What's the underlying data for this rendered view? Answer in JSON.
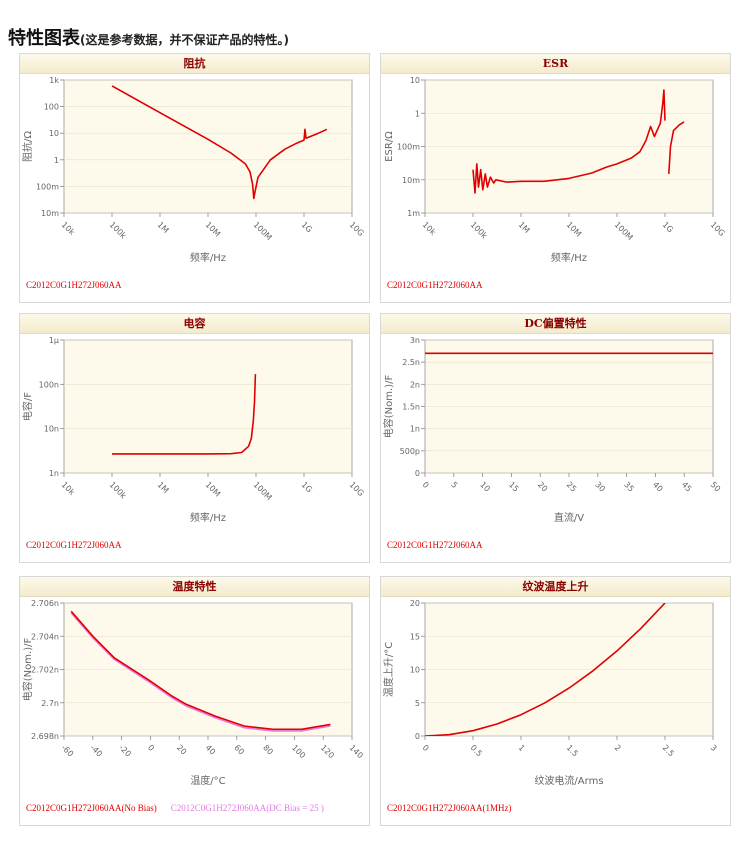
{
  "page": {
    "title": "特性图表",
    "subtitle": "(这是参考数据，并不保证产品的特性。)"
  },
  "colors": {
    "red": "#e00000",
    "pink": "#e47ae4",
    "plot_bg": "#fdfaec",
    "frame": "#a9a9a9"
  },
  "chart_data": [
    {
      "id": "impedance",
      "type": "line",
      "title": "阻抗",
      "xscale": "log",
      "yscale": "log",
      "xlim": [
        10000,
        10000000000
      ],
      "ylim": [
        0.01,
        1000
      ],
      "xticks": [
        10000,
        100000,
        1000000,
        10000000,
        100000000,
        1000000000,
        10000000000
      ],
      "xtick_labels": [
        "10k",
        "100k",
        "1M",
        "10M",
        "100M",
        "1G",
        "10G"
      ],
      "yticks": [
        0.01,
        0.1,
        1,
        10,
        100,
        1000
      ],
      "ytick_labels": [
        "10m",
        "100m",
        "1",
        "10",
        "100",
        "1k"
      ],
      "xlabel": "频率/Hz",
      "ylabel": "阻抗/Ω",
      "series": [
        {
          "color": "#e00000",
          "points": [
            [
              100000,
              600
            ],
            [
              1000000,
              59
            ],
            [
              10000000,
              5.9
            ],
            [
              30000000,
              1.8
            ],
            [
              60000000,
              0.7
            ],
            [
              75000000,
              0.35
            ],
            [
              85000000,
              0.12
            ],
            [
              90000000,
              0.035
            ],
            [
              95000000,
              0.06
            ],
            [
              110000000,
              0.22
            ],
            [
              200000000,
              1.0
            ],
            [
              400000000,
              2.5
            ],
            [
              700000000,
              4.2
            ],
            [
              1000000000,
              5.5
            ],
            [
              1050000000,
              14
            ],
            [
              1100000000,
              6.5
            ],
            [
              2000000000,
              10
            ],
            [
              3000000000,
              14
            ]
          ]
        }
      ],
      "legend": [
        {
          "label": "C2012C0G1H272J060AA",
          "color": "#e00000"
        }
      ]
    },
    {
      "id": "esr",
      "type": "line",
      "title": "ESR",
      "xscale": "log",
      "yscale": "log",
      "xlim": [
        10000,
        10000000000
      ],
      "ylim": [
        0.001,
        10
      ],
      "xticks": [
        10000,
        100000,
        1000000,
        10000000,
        100000000,
        1000000000,
        10000000000
      ],
      "xtick_labels": [
        "10k",
        "100k",
        "1M",
        "10M",
        "100M",
        "1G",
        "10G"
      ],
      "yticks": [
        0.001,
        0.01,
        0.1,
        1,
        10
      ],
      "ytick_labels": [
        "1m",
        "10m",
        "100m",
        "1",
        "10"
      ],
      "xlabel": "频率/Hz",
      "ylabel": "ESR/Ω",
      "series": [
        {
          "color": "#e00000",
          "points": [
            [
              100000,
              0.02
            ],
            [
              110000,
              0.004
            ],
            [
              120000,
              0.03
            ],
            [
              130000,
              0.006
            ],
            [
              145000,
              0.02
            ],
            [
              160000,
              0.005
            ],
            [
              180000,
              0.015
            ],
            [
              200000,
              0.006
            ],
            [
              230000,
              0.012
            ],
            [
              270000,
              0.008
            ],
            [
              300000,
              0.01
            ],
            [
              500000,
              0.0085
            ],
            [
              1000000,
              0.009
            ],
            [
              3000000,
              0.009
            ],
            [
              10000000,
              0.011
            ],
            [
              30000000,
              0.016
            ],
            [
              60000000,
              0.024
            ],
            [
              100000000,
              0.03
            ],
            [
              200000000,
              0.045
            ],
            [
              300000000,
              0.07
            ],
            [
              400000000,
              0.15
            ],
            [
              500000000,
              0.4
            ],
            [
              600000000,
              0.2
            ],
            [
              800000000,
              0.5
            ],
            [
              900000000,
              2
            ],
            [
              950000000,
              5
            ],
            [
              1000000000,
              0.6
            ]
          ]
        },
        {
          "color": "#e00000",
          "points": [
            [
              1200000000,
              0.015
            ],
            [
              1300000000,
              0.1
            ],
            [
              1500000000,
              0.3
            ],
            [
              2000000000,
              0.45
            ],
            [
              2500000000,
              0.55
            ]
          ]
        }
      ],
      "legend": [
        {
          "label": "C2012C0G1H272J060AA",
          "color": "#e00000"
        }
      ]
    },
    {
      "id": "capacitance",
      "type": "line",
      "title": "电容",
      "xscale": "log",
      "yscale": "log",
      "xlim": [
        10000,
        10000000000
      ],
      "ylim": [
        1e-09,
        1e-06
      ],
      "xticks": [
        10000,
        100000,
        1000000,
        10000000,
        100000000,
        1000000000,
        10000000000
      ],
      "xtick_labels": [
        "10k",
        "100k",
        "1M",
        "10M",
        "100M",
        "1G",
        "10G"
      ],
      "yticks": [
        1e-09,
        1e-08,
        1e-07,
        1e-06
      ],
      "ytick_labels": [
        "1n",
        "10n",
        "100n",
        "1μ"
      ],
      "xlabel": "频率/Hz",
      "ylabel": "电容/F",
      "series": [
        {
          "color": "#e00000",
          "points": [
            [
              100000,
              2.7e-09
            ],
            [
              10000000,
              2.7e-09
            ],
            [
              30000000,
              2.72e-09
            ],
            [
              50000000,
              2.9e-09
            ],
            [
              70000000,
              4e-09
            ],
            [
              80000000,
              6e-09
            ],
            [
              88000000,
              1.5e-08
            ],
            [
              93000000,
              4e-08
            ],
            [
              97000000,
              1.7e-07
            ]
          ]
        }
      ],
      "legend": [
        {
          "label": "C2012C0G1H272J060AA",
          "color": "#e00000"
        }
      ]
    },
    {
      "id": "dc-bias",
      "type": "line",
      "title": "DC偏置特性",
      "xscale": "linear",
      "yscale": "linear",
      "xlim": [
        0,
        50
      ],
      "ylim": [
        0,
        3e-09
      ],
      "xticks": [
        0,
        5,
        10,
        15,
        20,
        25,
        30,
        35,
        40,
        45,
        50
      ],
      "xtick_labels": [
        "0",
        "5",
        "10",
        "15",
        "20",
        "25",
        "30",
        "35",
        "40",
        "45",
        "50"
      ],
      "yticks": [
        0,
        5e-10,
        1e-09,
        1.5e-09,
        2e-09,
        2.5e-09,
        3e-09
      ],
      "ytick_labels": [
        "0",
        "500p",
        "1n",
        "1.5n",
        "2n",
        "2.5n",
        "3n"
      ],
      "xlabel": "直流/V",
      "ylabel": "电容(Nom.)/F",
      "series": [
        {
          "color": "#e00000",
          "points": [
            [
              0,
              2.7e-09
            ],
            [
              50,
              2.7e-09
            ]
          ]
        }
      ],
      "legend": [
        {
          "label": "C2012C0G1H272J060AA",
          "color": "#e00000"
        }
      ]
    },
    {
      "id": "temperature",
      "type": "line",
      "title": "温度特性",
      "xscale": "linear",
      "yscale": "linear",
      "xlim": [
        -60,
        140
      ],
      "ylim": [
        2.698e-09,
        2.706e-09
      ],
      "xticks": [
        -60,
        -40,
        -20,
        0,
        20,
        40,
        60,
        80,
        100,
        120,
        140
      ],
      "xtick_labels": [
        "-60",
        "-40",
        "-20",
        "0",
        "20",
        "40",
        "60",
        "80",
        "100",
        "120",
        "140"
      ],
      "yticks": [
        2.698e-09,
        2.7e-09,
        2.702e-09,
        2.704e-09,
        2.706e-09
      ],
      "ytick_labels": [
        "2.698n",
        "2.7n",
        "2.702n",
        "2.704n",
        "2.706n"
      ],
      "xlabel": "温度/°C",
      "ylabel": "电容(Nom.)/F",
      "series": [
        {
          "color": "#e47ae4",
          "points": [
            [
              -55,
              2.7054e-09
            ],
            [
              -40,
              2.7039e-09
            ],
            [
              -25,
              2.7026e-09
            ],
            [
              0,
              2.7012e-09
            ],
            [
              15,
              2.7003e-09
            ],
            [
              25,
              2.6998e-09
            ],
            [
              45,
              2.6991e-09
            ],
            [
              65,
              2.6985e-09
            ],
            [
              85,
              2.6983e-09
            ],
            [
              105,
              2.6983e-09
            ],
            [
              125,
              2.6986e-09
            ]
          ]
        },
        {
          "color": "#e00000",
          "points": [
            [
              -55,
              2.7055e-09
            ],
            [
              -40,
              2.704e-09
            ],
            [
              -25,
              2.7027e-09
            ],
            [
              0,
              2.7013e-09
            ],
            [
              15,
              2.7004e-09
            ],
            [
              25,
              2.6999e-09
            ],
            [
              45,
              2.6992e-09
            ],
            [
              65,
              2.6986e-09
            ],
            [
              85,
              2.6984e-09
            ],
            [
              105,
              2.6984e-09
            ],
            [
              125,
              2.6987e-09
            ]
          ]
        }
      ],
      "legend": [
        {
          "label": "C2012C0G1H272J060AA(No Bias)",
          "color": "#e00000"
        },
        {
          "label": "C2012C0G1H272J060AA(DC Bias = 25 )",
          "color": "#e47ae4"
        }
      ]
    },
    {
      "id": "ripple",
      "type": "line",
      "title": "纹波温度上升",
      "xscale": "linear",
      "yscale": "linear",
      "xlim": [
        0,
        3
      ],
      "ylim": [
        0,
        20
      ],
      "xticks": [
        0,
        0.5,
        1,
        1.5,
        2,
        2.5,
        3
      ],
      "xtick_labels": [
        "0",
        "0.5",
        "1",
        "1.5",
        "2",
        "2.5",
        "3"
      ],
      "yticks": [
        0,
        5,
        10,
        15,
        20
      ],
      "ytick_labels": [
        "0",
        "5",
        "10",
        "15",
        "20"
      ],
      "xlabel": "纹波电流/Arms",
      "ylabel": "温度上升/°C",
      "series": [
        {
          "color": "#e00000",
          "points": [
            [
              0,
              0
            ],
            [
              0.25,
              0.2
            ],
            [
              0.5,
              0.8
            ],
            [
              0.75,
              1.8
            ],
            [
              1,
              3.2
            ],
            [
              1.25,
              5
            ],
            [
              1.5,
              7.2
            ],
            [
              1.75,
              9.8
            ],
            [
              2,
              12.8
            ],
            [
              2.25,
              16.2
            ],
            [
              2.5,
              20
            ]
          ]
        }
      ],
      "legend": [
        {
          "label": "C2012C0G1H272J060AA(1MHz)",
          "color": "#e00000"
        }
      ]
    }
  ]
}
